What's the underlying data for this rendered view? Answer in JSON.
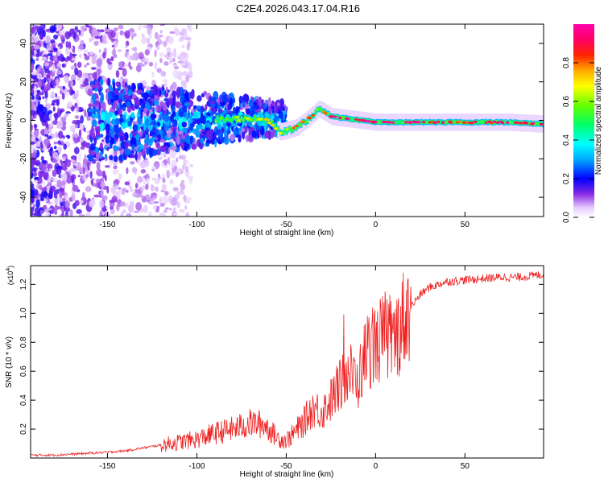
{
  "figure_title": "C2E4.2026.043.17.04.R16",
  "chart_data": [
    {
      "type": "heatmap",
      "title": "C2E4.2026.043.17.04.R16",
      "xlabel": "Height of straight line (km)",
      "ylabel": "Frequency (Hz)",
      "xlim": [
        -193,
        94
      ],
      "ylim": [
        -50,
        50
      ],
      "xticks": [
        -150,
        -100,
        -50,
        0,
        50
      ],
      "yticks": [
        -40,
        -20,
        0,
        20,
        40
      ],
      "xtick_labels": [
        "-150",
        "-100",
        "-50",
        "0",
        "50"
      ],
      "ytick_labels": [
        "-40",
        "-20",
        "0",
        "20",
        "40"
      ],
      "colorbar": {
        "label": "Normalized spectral amplitude",
        "range": [
          0,
          1
        ],
        "ticks": [
          0.0,
          0.2,
          0.4,
          0.6,
          0.8
        ],
        "tick_labels": [
          "0.0",
          "0.2",
          "0.4",
          "0.6",
          "0.8"
        ]
      },
      "ridge": [
        {
          "x": -80,
          "y": 0.5,
          "amp": 0.5
        },
        {
          "x": -70,
          "y": 1,
          "amp": 0.55
        },
        {
          "x": -60,
          "y": 0,
          "amp": 0.6
        },
        {
          "x": -54,
          "y": -6,
          "amp": 0.55
        },
        {
          "x": -45,
          "y": -4,
          "amp": 0.7
        },
        {
          "x": -38,
          "y": 1,
          "amp": 0.75
        },
        {
          "x": -32,
          "y": 6,
          "amp": 0.6
        },
        {
          "x": -25,
          "y": 2,
          "amp": 0.85
        },
        {
          "x": 0,
          "y": -1,
          "amp": 0.9
        },
        {
          "x": 25,
          "y": -1,
          "amp": 0.85
        },
        {
          "x": 50,
          "y": -1,
          "amp": 0.75
        },
        {
          "x": 75,
          "y": -1,
          "amp": 0.85
        },
        {
          "x": 94,
          "y": -2,
          "amp": 0.8
        }
      ]
    },
    {
      "type": "line",
      "xlabel": "Height of straight line (km)",
      "ylabel": "SNR (10 * v/v)",
      "y_multiplier_label": "(x10",
      "y_multiplier_exponent": "4",
      "y_multiplier_close": ")",
      "xlim": [
        -193,
        94
      ],
      "ylim": [
        0,
        1.33
      ],
      "xticks": [
        -150,
        -100,
        -50,
        0,
        50
      ],
      "yticks": [
        0.2,
        0.4,
        0.6,
        0.8,
        1.0,
        1.2
      ],
      "xtick_labels": [
        "-150",
        "-100",
        "-50",
        "0",
        "50"
      ],
      "ytick_labels": [
        "0.2",
        "0.4",
        "0.6",
        "0.8",
        "1.0",
        "1.2"
      ],
      "series": [
        {
          "name": "SNR",
          "color": "#ee2222",
          "x": [
            -193,
            -180,
            -165,
            -150,
            -140,
            -130,
            -120,
            -110,
            -100,
            -90,
            -80,
            -70,
            -62,
            -55,
            -50,
            -45,
            -40,
            -35,
            -30,
            -25,
            -20,
            -15,
            -10,
            -5,
            0,
            5,
            10,
            15,
            20,
            25,
            30,
            40,
            50,
            60,
            70,
            80,
            88,
            94
          ],
          "y": [
            0.02,
            0.02,
            0.03,
            0.04,
            0.05,
            0.07,
            0.09,
            0.11,
            0.13,
            0.17,
            0.2,
            0.24,
            0.23,
            0.14,
            0.12,
            0.18,
            0.25,
            0.35,
            0.32,
            0.4,
            0.5,
            0.6,
            0.52,
            0.75,
            0.78,
            0.85,
            0.8,
            0.95,
            1.05,
            1.13,
            1.18,
            1.22,
            1.23,
            1.24,
            1.25,
            1.25,
            1.26,
            1.27
          ]
        }
      ]
    }
  ]
}
